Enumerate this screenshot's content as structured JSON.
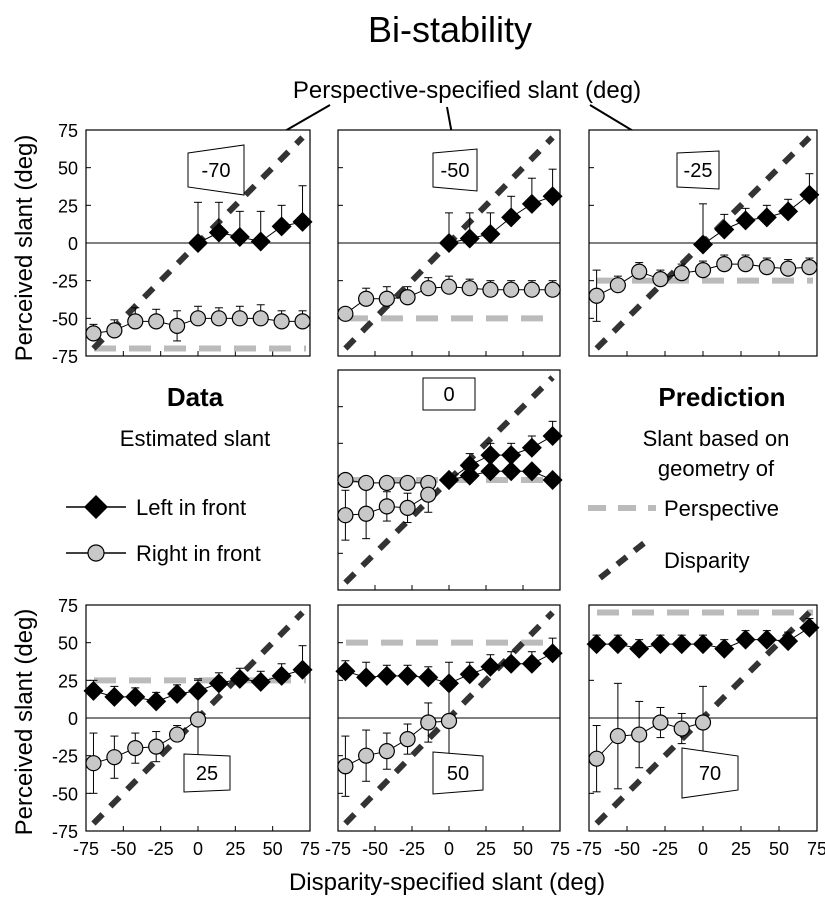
{
  "title": "Bi-stability",
  "top_annotation": "Perspective-specified slant (deg)",
  "y_axis_label": "Perceived slant (deg)",
  "x_axis_label": "Disparity-specified slant (deg)",
  "y_tick_labels": [
    "75",
    "50",
    "25",
    "0",
    "-25",
    "-50",
    "-75"
  ],
  "x_tick_labels": [
    "-75",
    "-50",
    "-25",
    "0",
    "25",
    "50",
    "75"
  ],
  "left_legend": {
    "heading": "Data",
    "subheading": "Estimated slant",
    "left_in_front": "Left in front",
    "right_in_front": "Right in front"
  },
  "right_legend": {
    "heading": "Prediction",
    "subheading_line1": "Slant based on",
    "subheading_line2": "geometry of",
    "perspective": "Perspective",
    "disparity": "Disparity"
  },
  "colors": {
    "diamond": "#000000",
    "circle_fill": "#c8c8c8",
    "perspective_line": "#bbbbbb",
    "disparity_line": "#333333"
  },
  "chart_data": [
    {
      "type": "scatter",
      "panel_label": "-70",
      "perspective": -70,
      "x": [
        -70,
        -56,
        -42,
        -28,
        -14,
        0,
        14,
        28,
        42,
        56,
        70
      ],
      "series": [
        {
          "name": "Left in front",
          "values": [
            null,
            null,
            null,
            null,
            null,
            0,
            7,
            4,
            1,
            11,
            14
          ],
          "err": [
            0,
            0,
            0,
            0,
            0,
            27,
            20,
            17,
            20,
            14,
            24
          ]
        },
        {
          "name": "Right in front",
          "values": [
            -60,
            -58,
            -52,
            -52,
            -55,
            -50,
            -50,
            -50,
            -50,
            -52,
            -52
          ],
          "err": [
            6,
            7,
            9,
            8,
            10,
            8,
            7,
            8,
            9,
            7,
            7
          ]
        }
      ]
    },
    {
      "type": "scatter",
      "panel_label": "-50",
      "perspective": -50,
      "x": [
        -70,
        -56,
        -42,
        -28,
        -14,
        0,
        14,
        28,
        42,
        56,
        70
      ],
      "series": [
        {
          "name": "Left in front",
          "values": [
            null,
            null,
            null,
            null,
            null,
            0,
            3,
            6,
            17,
            26,
            31
          ],
          "err": [
            0,
            0,
            0,
            0,
            0,
            20,
            17,
            14,
            14,
            17,
            18
          ]
        },
        {
          "name": "Right in front",
          "values": [
            -47,
            -37,
            -37,
            -36,
            -30,
            -29,
            -30,
            -31,
            -31,
            -31,
            -31
          ],
          "err": [
            0,
            7,
            8,
            7,
            7,
            7,
            6,
            6,
            6,
            6,
            6
          ]
        }
      ]
    },
    {
      "type": "scatter",
      "panel_label": "-25",
      "perspective": -25,
      "x": [
        -70,
        -56,
        -42,
        -28,
        -14,
        0,
        14,
        28,
        42,
        56,
        70
      ],
      "series": [
        {
          "name": "Left in front",
          "values": [
            null,
            null,
            null,
            null,
            null,
            -1,
            9,
            15,
            17,
            21,
            32
          ],
          "err": [
            0,
            0,
            0,
            0,
            0,
            27,
            10,
            8,
            8,
            8,
            14
          ]
        },
        {
          "name": "Right in front",
          "values": [
            -35,
            -28,
            -19,
            -24,
            -20,
            -18,
            -14,
            -14,
            -16,
            -17,
            -16
          ],
          "err": [
            17,
            6,
            6,
            6,
            6,
            6,
            6,
            6,
            6,
            6,
            6
          ]
        }
      ]
    },
    {
      "type": "scatter",
      "panel_label": "0",
      "perspective": 0,
      "x": [
        -70,
        -56,
        -42,
        -28,
        -14,
        0,
        14,
        28,
        42,
        56,
        70
      ],
      "series": [
        {
          "name": "Left in front",
          "values": [
            null,
            null,
            null,
            null,
            null,
            0,
            3,
            6,
            6,
            6,
            0
          ],
          "err": [
            0,
            0,
            0,
            0,
            0,
            0,
            0,
            0,
            0,
            0,
            0
          ]
        },
        {
          "name": "Left in front",
          "values": [
            null,
            null,
            null,
            null,
            null,
            0,
            10,
            17,
            17,
            22,
            30
          ],
          "err": [
            0,
            0,
            0,
            0,
            0,
            0,
            8,
            8,
            8,
            8,
            10
          ]
        },
        {
          "name": "Right in front",
          "values": [
            0,
            -2,
            -2,
            -2,
            -2,
            null,
            null,
            null,
            null,
            null,
            null
          ],
          "err": [
            0,
            0,
            0,
            0,
            0,
            0,
            0,
            0,
            0,
            0,
            0
          ]
        },
        {
          "name": "Right in front",
          "values": [
            -24,
            -23,
            -18,
            -19,
            -10,
            null,
            null,
            null,
            null,
            null,
            null
          ],
          "err": [
            17,
            17,
            10,
            10,
            12,
            0,
            0,
            0,
            0,
            0,
            0
          ]
        }
      ]
    },
    {
      "type": "scatter",
      "panel_label": "25",
      "perspective": 25,
      "x": [
        -70,
        -56,
        -42,
        -28,
        -14,
        0,
        14,
        28,
        42,
        56,
        70
      ],
      "series": [
        {
          "name": "Left in front",
          "values": [
            18,
            14,
            14,
            11,
            16,
            18,
            23,
            26,
            24,
            28,
            32
          ],
          "err": [
            7,
            7,
            6,
            6,
            6,
            7,
            7,
            7,
            7,
            8,
            16
          ]
        },
        {
          "name": "Right in front",
          "values": [
            -30,
            -26,
            -20,
            -19,
            -11,
            -1,
            null,
            null,
            null,
            null,
            null
          ],
          "err": [
            20,
            14,
            10,
            10,
            6,
            27,
            0,
            0,
            0,
            0,
            0
          ]
        }
      ]
    },
    {
      "type": "scatter",
      "panel_label": "50",
      "perspective": 50,
      "x": [
        -70,
        -56,
        -42,
        -28,
        -14,
        0,
        14,
        28,
        42,
        56,
        70
      ],
      "series": [
        {
          "name": "Left in front",
          "values": [
            31,
            27,
            28,
            28,
            27,
            23,
            29,
            34,
            36,
            36,
            43
          ],
          "err": [
            7,
            10,
            7,
            7,
            7,
            14,
            8,
            8,
            8,
            8,
            10
          ]
        },
        {
          "name": "Right in front",
          "values": [
            -32,
            -25,
            -22,
            -14,
            -3,
            -2,
            null,
            null,
            null,
            null,
            null
          ],
          "err": [
            20,
            17,
            12,
            10,
            13,
            27,
            0,
            0,
            0,
            0,
            0
          ]
        }
      ]
    },
    {
      "type": "scatter",
      "panel_label": "70",
      "perspective": 70,
      "x": [
        -70,
        -56,
        -42,
        -28,
        -14,
        0,
        14,
        28,
        42,
        56,
        70
      ],
      "series": [
        {
          "name": "Left in front",
          "values": [
            49,
            49,
            46,
            49,
            49,
            49,
            46,
            52,
            52,
            51,
            60
          ],
          "err": [
            6,
            6,
            6,
            6,
            6,
            6,
            6,
            6,
            6,
            6,
            6
          ]
        },
        {
          "name": "Right in front",
          "values": [
            -27,
            -12,
            -11,
            -3,
            -7,
            -3,
            null,
            null,
            null,
            null,
            null
          ],
          "err": [
            22,
            35,
            22,
            10,
            10,
            24,
            0,
            0,
            0,
            0,
            0
          ]
        }
      ]
    }
  ]
}
